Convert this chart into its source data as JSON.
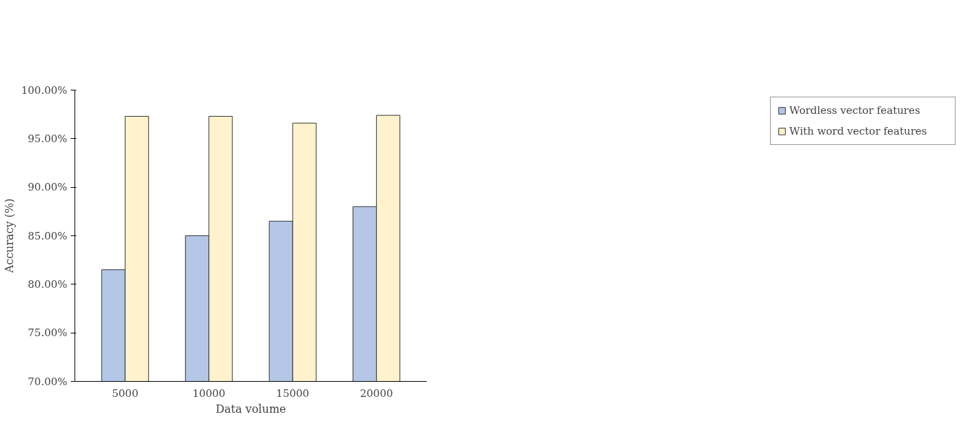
{
  "chart_data": {
    "type": "bar",
    "xlabel": "Data volume",
    "ylabel": "Accuracy (%)",
    "categories": [
      "5000",
      "10000",
      "15000",
      "20000"
    ],
    "series": [
      {
        "name": "Wordless vector features",
        "color": "#b4c7e7",
        "values": [
          81.5,
          85.0,
          86.5,
          88.0
        ]
      },
      {
        "name": "With word vector features",
        "color": "#fff2cc",
        "values": [
          97.3,
          97.3,
          96.6,
          97.4
        ]
      }
    ],
    "ylim": [
      70,
      100
    ],
    "yticks": [
      {
        "value": 70,
        "label": "70.00%"
      },
      {
        "value": 75,
        "label": "75.00%"
      },
      {
        "value": 80,
        "label": "80.00%"
      },
      {
        "value": 85,
        "label": "85.00%"
      },
      {
        "value": 90,
        "label": "90.00%"
      },
      {
        "value": 95,
        "label": "95.00%"
      },
      {
        "value": 100,
        "label": "100.00%"
      }
    ],
    "grid": false,
    "legend": "right"
  }
}
